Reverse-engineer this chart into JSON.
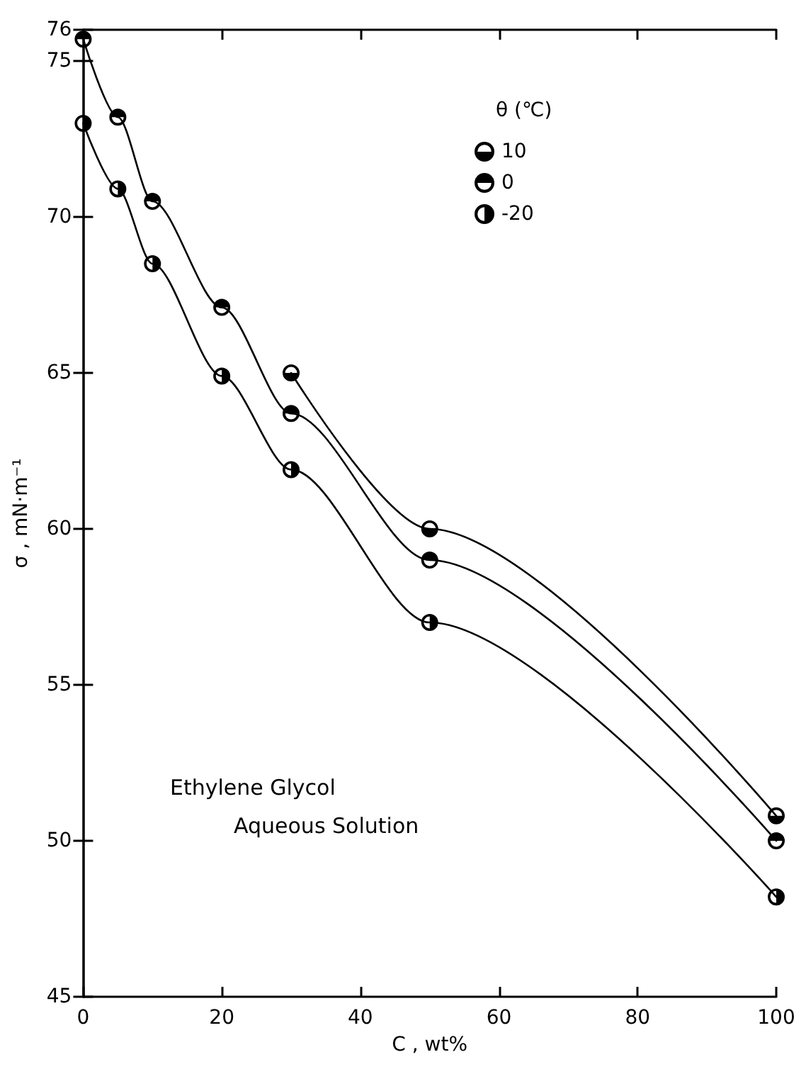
{
  "chart_data": {
    "type": "line",
    "xlabel": "C , wt%",
    "ylabel": "σ , mN·m⁻¹",
    "legend_title": "θ (℃)",
    "annotations": [
      "Ethylene Glycol",
      "Aqueous Solution"
    ],
    "series": [
      {
        "name": "10",
        "color": "#000000",
        "x": [
          30,
          50,
          100
        ],
        "values": [
          65.0,
          60.0,
          50.8
        ]
      },
      {
        "name": "0",
        "color": "#000000",
        "x": [
          0,
          5,
          10,
          20,
          30,
          50,
          100
        ],
        "values": [
          75.7,
          73.2,
          70.5,
          67.1,
          63.7,
          59.0,
          50.0
        ]
      },
      {
        "name": "-20",
        "color": "#000000",
        "x": [
          0,
          5,
          10,
          20,
          30,
          50,
          100
        ],
        "values": [
          73.0,
          70.9,
          68.5,
          64.9,
          61.9,
          57.0,
          48.2
        ]
      }
    ],
    "xlim": [
      0,
      100
    ],
    "xticks": [
      0,
      20,
      40,
      60,
      80,
      100
    ],
    "ylim": [
      45,
      76
    ],
    "yticks": [
      45,
      50,
      55,
      60,
      65,
      70,
      75,
      76
    ],
    "grid": false,
    "legend": "top right",
    "marker": "circle",
    "line_style": "solid"
  }
}
